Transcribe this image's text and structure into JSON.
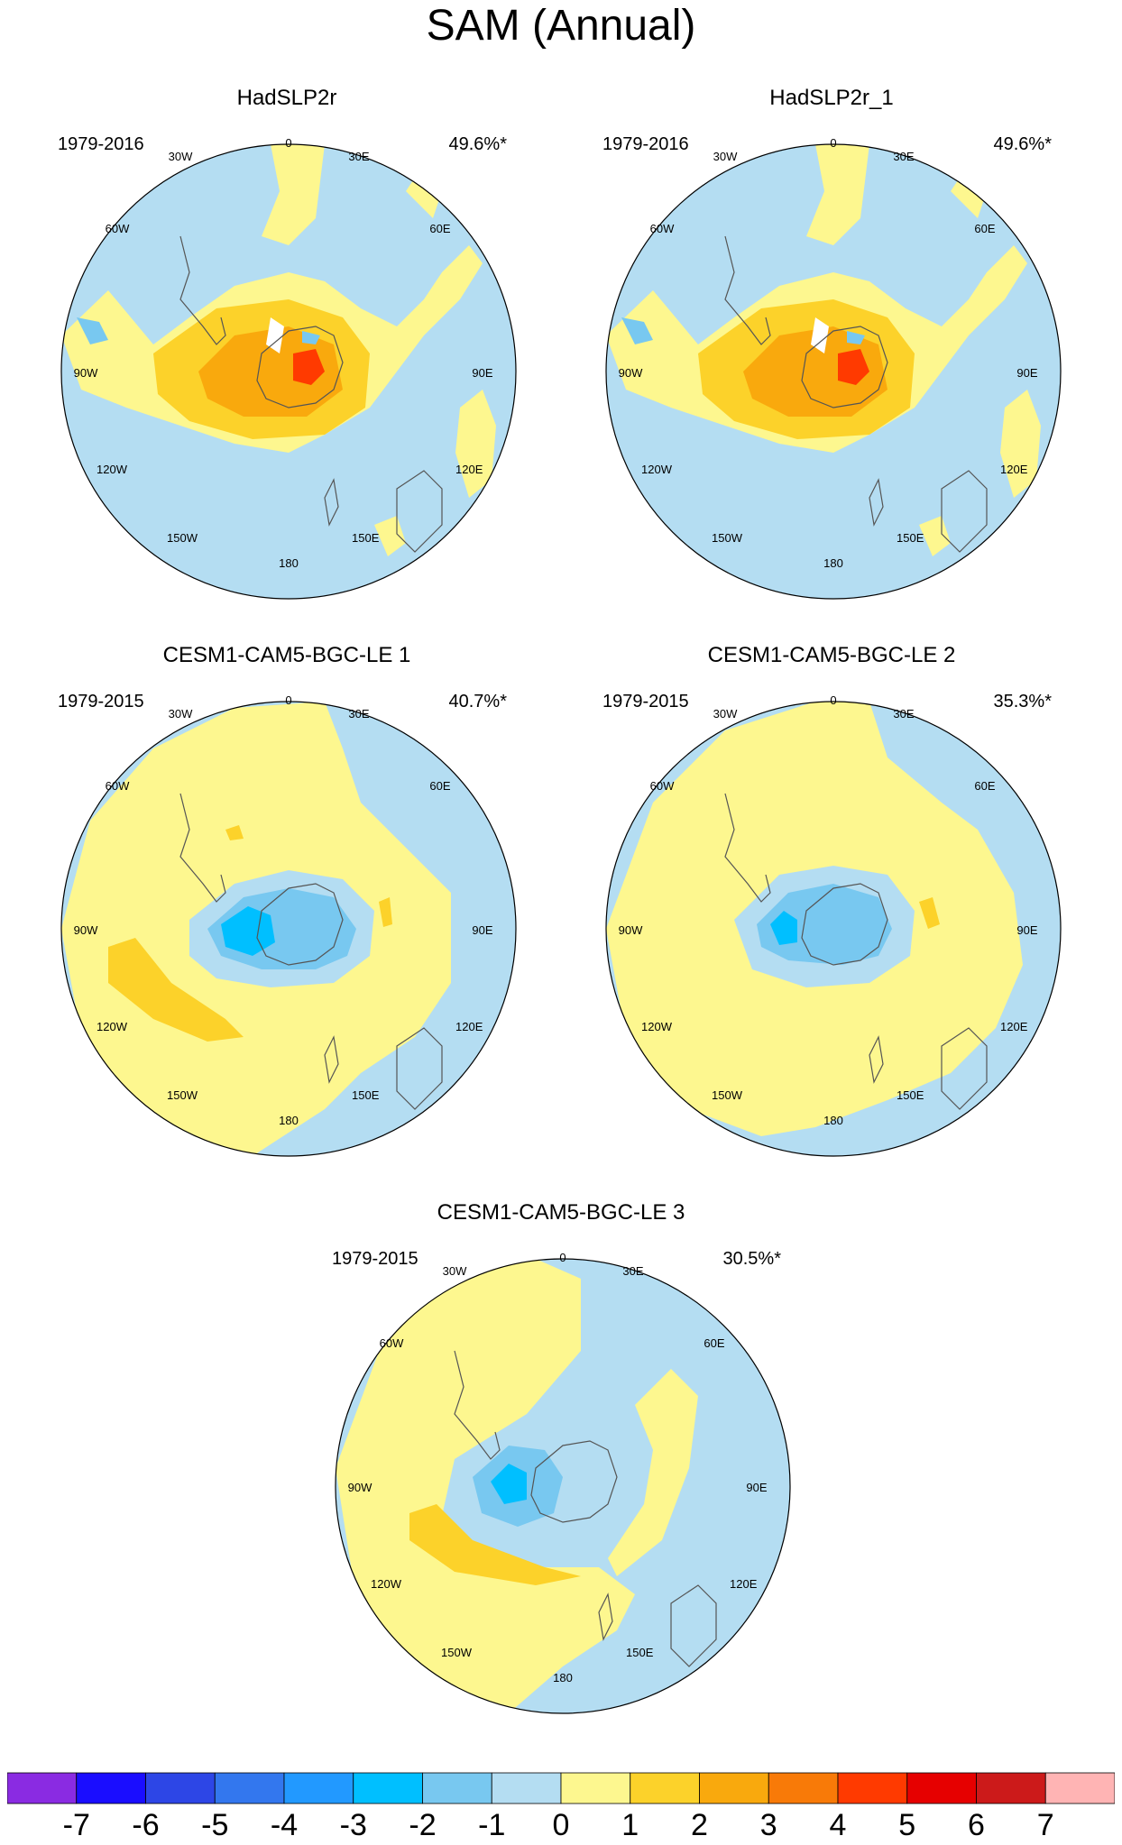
{
  "title": "SAM (Annual)",
  "panels": [
    {
      "title": "HadSLP2r",
      "period": "1979-2016",
      "percent": "49.6%*",
      "pattern": "obs"
    },
    {
      "title": "HadSLP2r_1",
      "period": "1979-2016",
      "percent": "49.6%*",
      "pattern": "obs"
    },
    {
      "title": "CESM1-CAM5-BGC-LE 1",
      "period": "1979-2015",
      "percent": "40.7%*",
      "pattern": "le1"
    },
    {
      "title": "CESM1-CAM5-BGC-LE 2",
      "period": "1979-2015",
      "percent": "35.3%*",
      "pattern": "le2"
    },
    {
      "title": "CESM1-CAM5-BGC-LE 3",
      "period": "1979-2015",
      "percent": "30.5%*",
      "pattern": "le3"
    }
  ],
  "longitude_labels": [
    "0",
    "30E",
    "60E",
    "90E",
    "120E",
    "150E",
    "180",
    "150W",
    "120W",
    "90W",
    "60W",
    "30W"
  ],
  "colorbar": {
    "levels": [
      "-7",
      "-6",
      "-5",
      "-4",
      "-3",
      "-2",
      "-1",
      "0",
      "1",
      "2",
      "3",
      "4",
      "5",
      "6",
      "7"
    ],
    "colors": [
      "#8a2be2",
      "#1a0dff",
      "#2d46e6",
      "#3377ee",
      "#2299ff",
      "#00bfff",
      "#78c8f0",
      "#b4ddf2",
      "#fdf78f",
      "#fcd22a",
      "#f9a90d",
      "#f87a08",
      "#ff3a00",
      "#e60000",
      "#cc1a1a",
      "#ffb4b4"
    ]
  },
  "map_colors": {
    "ocean": "#b4ddf2",
    "land_line": "#555555"
  }
}
